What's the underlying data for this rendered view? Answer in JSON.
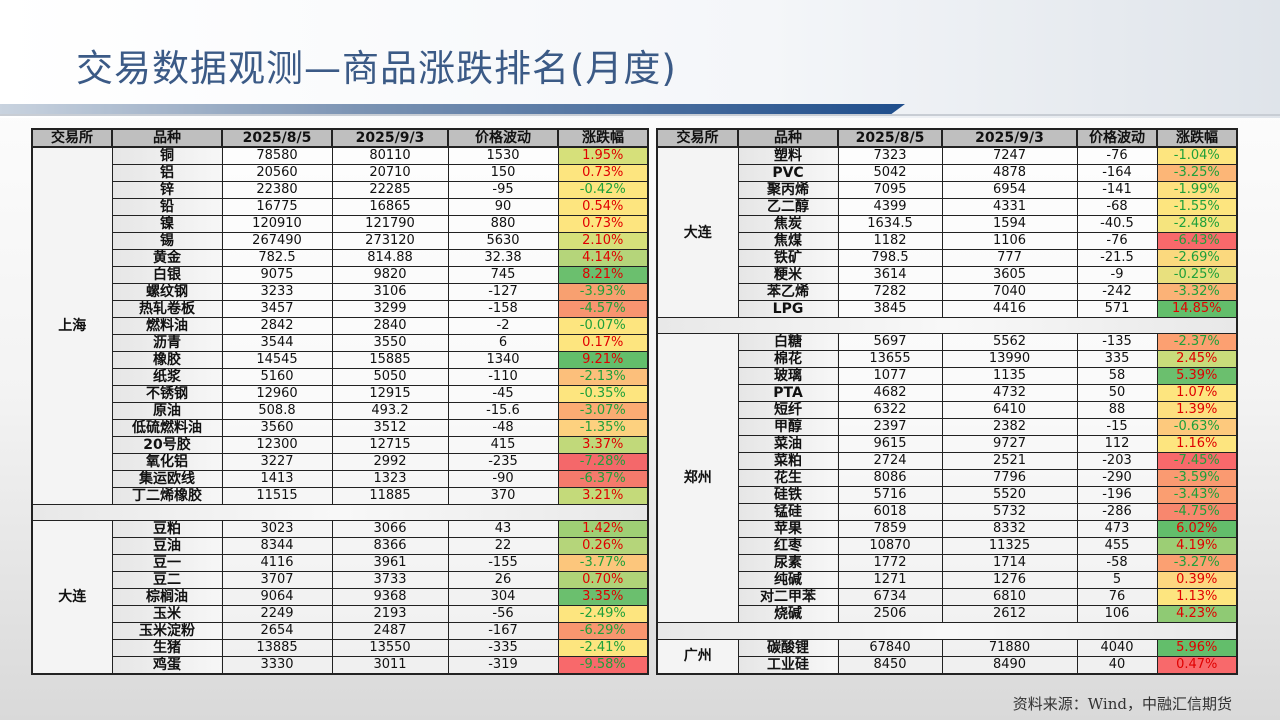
{
  "title": "交易数据观测—商品涨跌排名(月度)",
  "source": "资料来源：Wind，中融汇信期货",
  "colors": {
    "positive_text": "#e00000",
    "negative_text": "#1fa03a",
    "title": "#3b5a86"
  },
  "headers": [
    "交易所",
    "品种",
    "2025/8/5",
    "2025/9/3",
    "价格波动",
    "涨跌幅"
  ],
  "left_table": {
    "groups": [
      {
        "exchange": "上海",
        "rows": [
          {
            "name": "铜",
            "p1": "78580",
            "p2": "80110",
            "chg": "1530",
            "pct": "1.95%",
            "bg": "#d6e07a"
          },
          {
            "name": "铝",
            "p1": "20560",
            "p2": "20710",
            "chg": "150",
            "pct": "0.73%",
            "bg": "#fde57f"
          },
          {
            "name": "锌",
            "p1": "22380",
            "p2": "22285",
            "chg": "-95",
            "pct": "-0.42%",
            "bg": "#fde57f"
          },
          {
            "name": "铅",
            "p1": "16775",
            "p2": "16865",
            "chg": "90",
            "pct": "0.54%",
            "bg": "#fde57f"
          },
          {
            "name": "镍",
            "p1": "120910",
            "p2": "121790",
            "chg": "880",
            "pct": "0.73%",
            "bg": "#fde57f"
          },
          {
            "name": "锡",
            "p1": "267490",
            "p2": "273120",
            "chg": "5630",
            "pct": "2.10%",
            "bg": "#d6e07a"
          },
          {
            "name": "黄金",
            "p1": "782.5",
            "p2": "814.88",
            "chg": "32.38",
            "pct": "4.14%",
            "bg": "#b5d57a"
          },
          {
            "name": "白银",
            "p1": "9075",
            "p2": "9820",
            "chg": "745",
            "pct": "8.21%",
            "bg": "#6bbf6e"
          },
          {
            "name": "螺纹钢",
            "p1": "3233",
            "p2": "3106",
            "chg": "-127",
            "pct": "-3.93%",
            "bg": "#f8a070"
          },
          {
            "name": "热轧卷板",
            "p1": "3457",
            "p2": "3299",
            "chg": "-158",
            "pct": "-4.57%",
            "bg": "#f89470"
          },
          {
            "name": "燃料油",
            "p1": "2842",
            "p2": "2840",
            "chg": "-2",
            "pct": "-0.07%",
            "bg": "#fde57f"
          },
          {
            "name": "沥青",
            "p1": "3544",
            "p2": "3550",
            "chg": "6",
            "pct": "0.17%",
            "bg": "#fde57f"
          },
          {
            "name": "橡胶",
            "p1": "14545",
            "p2": "15885",
            "chg": "1340",
            "pct": "9.21%",
            "bg": "#63be6b"
          },
          {
            "name": "纸浆",
            "p1": "5160",
            "p2": "5050",
            "chg": "-110",
            "pct": "-2.13%",
            "bg": "#fcbf7b"
          },
          {
            "name": "不锈钢",
            "p1": "12960",
            "p2": "12915",
            "chg": "-45",
            "pct": "-0.35%",
            "bg": "#fde57f"
          },
          {
            "name": "原油",
            "p1": "508.8",
            "p2": "493.2",
            "chg": "-15.6",
            "pct": "-3.07%",
            "bg": "#fbab73"
          },
          {
            "name": "低硫燃料油",
            "p1": "3560",
            "p2": "3512",
            "chg": "-48",
            "pct": "-1.35%",
            "bg": "#fdd17f"
          },
          {
            "name": "20号胶",
            "p1": "12300",
            "p2": "12715",
            "chg": "415",
            "pct": "3.37%",
            "bg": "#c1d97a"
          },
          {
            "name": "氧化铝",
            "p1": "3227",
            "p2": "2992",
            "chg": "-235",
            "pct": "-7.28%",
            "bg": "#f4686a"
          },
          {
            "name": "集运欧线",
            "p1": "1413",
            "p2": "1323",
            "chg": "-90",
            "pct": "-6.37%",
            "bg": "#f57a6c"
          },
          {
            "name": "丁二烯橡胶",
            "p1": "11515",
            "p2": "11885",
            "chg": "370",
            "pct": "3.21%",
            "bg": "#c4da7a"
          }
        ]
      },
      {
        "exchange": "大连",
        "rows": [
          {
            "name": "豆粕",
            "p1": "3023",
            "p2": "3066",
            "chg": "43",
            "pct": "1.42%",
            "bg": "#9fcf75"
          },
          {
            "name": "豆油",
            "p1": "8344",
            "p2": "8366",
            "chg": "22",
            "pct": "0.26%",
            "bg": "#b5d57a"
          },
          {
            "name": "豆一",
            "p1": "4116",
            "p2": "3961",
            "chg": "-155",
            "pct": "-3.77%",
            "bg": "#fcc67c"
          },
          {
            "name": "豆二",
            "p1": "3707",
            "p2": "3733",
            "chg": "26",
            "pct": "0.70%",
            "bg": "#b0d378"
          },
          {
            "name": "棕榈油",
            "p1": "9064",
            "p2": "9368",
            "chg": "304",
            "pct": "3.35%",
            "bg": "#6bbf6e"
          },
          {
            "name": "玉米",
            "p1": "2249",
            "p2": "2193",
            "chg": "-56",
            "pct": "-2.49%",
            "bg": "#fde57f"
          },
          {
            "name": "玉米淀粉",
            "p1": "2654",
            "p2": "2487",
            "chg": "-167",
            "pct": "-6.29%",
            "bg": "#f8966f"
          },
          {
            "name": "生猪",
            "p1": "13885",
            "p2": "13550",
            "chg": "-335",
            "pct": "-2.41%",
            "bg": "#fde57f"
          },
          {
            "name": "鸡蛋",
            "p1": "3330",
            "p2": "3011",
            "chg": "-319",
            "pct": "-9.58%",
            "bg": "#f8696b"
          }
        ]
      }
    ]
  },
  "right_table": {
    "groups": [
      {
        "exchange": "大连",
        "rows": [
          {
            "name": "塑料",
            "p1": "7323",
            "p2": "7247",
            "chg": "-76",
            "pct": "-1.04%",
            "bg": "#fde57f"
          },
          {
            "name": "PVC",
            "p1": "5042",
            "p2": "4878",
            "chg": "-164",
            "pct": "-3.25%",
            "bg": "#fcb677"
          },
          {
            "name": "聚丙烯",
            "p1": "7095",
            "p2": "6954",
            "chg": "-141",
            "pct": "-1.99%",
            "bg": "#fde17f"
          },
          {
            "name": "乙二醇",
            "p1": "4399",
            "p2": "4331",
            "chg": "-68",
            "pct": "-1.55%",
            "bg": "#fde57f"
          },
          {
            "name": "焦炭",
            "p1": "1634.5",
            "p2": "1594",
            "chg": "-40.5",
            "pct": "-2.48%",
            "bg": "#f5e47e"
          },
          {
            "name": "焦煤",
            "p1": "1182",
            "p2": "1106",
            "chg": "-76",
            "pct": "-6.43%",
            "bg": "#f8696b"
          },
          {
            "name": "铁矿",
            "p1": "798.5",
            "p2": "777",
            "chg": "-21.5",
            "pct": "-2.69%",
            "bg": "#fbd97e"
          },
          {
            "name": "粳米",
            "p1": "3614",
            "p2": "3605",
            "chg": "-9",
            "pct": "-0.25%",
            "bg": "#e8e07e"
          },
          {
            "name": "苯乙烯",
            "p1": "7282",
            "p2": "7040",
            "chg": "-242",
            "pct": "-3.32%",
            "bg": "#fbb277"
          },
          {
            "name": "LPG",
            "p1": "3845",
            "p2": "4416",
            "chg": "571",
            "pct": "14.85%",
            "bg": "#63be6b"
          }
        ]
      },
      {
        "exchange": "郑州",
        "rows": [
          {
            "name": "白糖",
            "p1": "5697",
            "p2": "5562",
            "chg": "-135",
            "pct": "-2.37%",
            "bg": "#fca071"
          },
          {
            "name": "棉花",
            "p1": "13655",
            "p2": "13990",
            "chg": "335",
            "pct": "2.45%",
            "bg": "#c9dc7b"
          },
          {
            "name": "玻璃",
            "p1": "1077",
            "p2": "1135",
            "chg": "58",
            "pct": "5.39%",
            "bg": "#6bbf6e"
          },
          {
            "name": "PTA",
            "p1": "4682",
            "p2": "4732",
            "chg": "50",
            "pct": "1.07%",
            "bg": "#fde57f"
          },
          {
            "name": "短纤",
            "p1": "6322",
            "p2": "6410",
            "chg": "88",
            "pct": "1.39%",
            "bg": "#fde07f"
          },
          {
            "name": "甲醇",
            "p1": "2397",
            "p2": "2382",
            "chg": "-15",
            "pct": "-0.63%",
            "bg": "#fdc97d"
          },
          {
            "name": "菜油",
            "p1": "9615",
            "p2": "9727",
            "chg": "112",
            "pct": "1.16%",
            "bg": "#fde57f"
          },
          {
            "name": "菜粕",
            "p1": "2724",
            "p2": "2521",
            "chg": "-203",
            "pct": "-7.45%",
            "bg": "#f8696b"
          },
          {
            "name": "花生",
            "p1": "8086",
            "p2": "7796",
            "chg": "-290",
            "pct": "-3.59%",
            "bg": "#fa9a71"
          },
          {
            "name": "硅铁",
            "p1": "5716",
            "p2": "5520",
            "chg": "-196",
            "pct": "-3.43%",
            "bg": "#fa9e71"
          },
          {
            "name": "锰硅",
            "p1": "6018",
            "p2": "5732",
            "chg": "-286",
            "pct": "-4.75%",
            "bg": "#f8876e"
          },
          {
            "name": "苹果",
            "p1": "7859",
            "p2": "8332",
            "chg": "473",
            "pct": "6.02%",
            "bg": "#63be6b"
          },
          {
            "name": "红枣",
            "p1": "10870",
            "p2": "11325",
            "chg": "455",
            "pct": "4.19%",
            "bg": "#9cce75"
          },
          {
            "name": "尿素",
            "p1": "1772",
            "p2": "1714",
            "chg": "-58",
            "pct": "-3.27%",
            "bg": "#fba072"
          },
          {
            "name": "纯碱",
            "p1": "1271",
            "p2": "1276",
            "chg": "5",
            "pct": "0.39%",
            "bg": "#fdd780"
          },
          {
            "name": "对二甲苯",
            "p1": "6734",
            "p2": "6810",
            "chg": "76",
            "pct": "1.13%",
            "bg": "#fde57f"
          },
          {
            "name": "烧碱",
            "p1": "2506",
            "p2": "2612",
            "chg": "106",
            "pct": "4.23%",
            "bg": "#8fca74"
          }
        ]
      },
      {
        "exchange": "广州",
        "rows": [
          {
            "name": "碳酸锂",
            "p1": "67840",
            "p2": "71880",
            "chg": "4040",
            "pct": "5.96%",
            "bg": "#63be6b"
          },
          {
            "name": "工业硅",
            "p1": "8450",
            "p2": "8490",
            "chg": "40",
            "pct": "0.47%",
            "bg": "#f8696b"
          }
        ]
      }
    ]
  }
}
